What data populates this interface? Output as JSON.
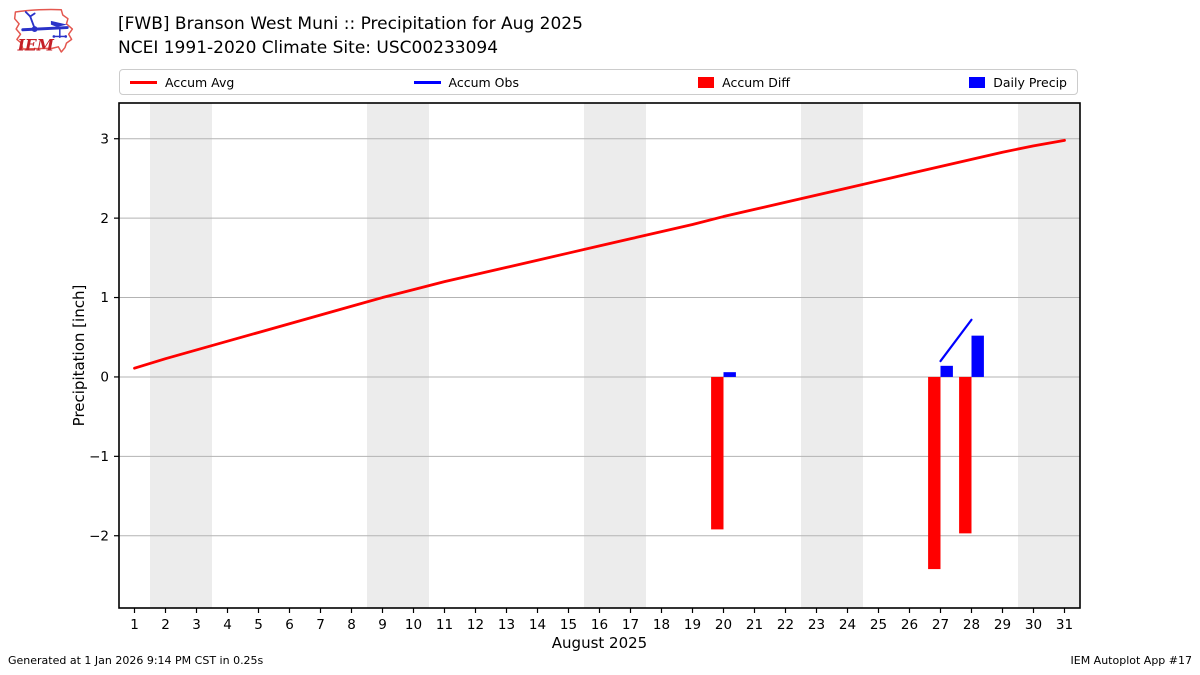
{
  "header": {
    "logo_text": "IEM",
    "title_line1": "[FWB] Branson West Muni :: Precipitation for Aug 2025",
    "title_line2": "NCEI 1991-2020 Climate Site: USC00233094"
  },
  "legend": {
    "items": [
      {
        "label": "Accum Avg",
        "type": "line",
        "color": "#ff0000"
      },
      {
        "label": "Accum Obs",
        "type": "line",
        "color": "#0000ff"
      },
      {
        "label": "Accum Diff",
        "type": "box",
        "color": "#ff0000"
      },
      {
        "label": "Daily Precip",
        "type": "box",
        "color": "#0000ff"
      }
    ]
  },
  "chart_data": {
    "type": "line+bar",
    "title": "[FWB] Branson West Muni :: Precipitation for Aug 2025 — NCEI 1991-2020 Climate Site: USC00233094",
    "xlabel": "August 2025",
    "ylabel": "Precipitation [inch]",
    "xlim": [
      0.5,
      31.5
    ],
    "ylim": [
      -2.91,
      3.45
    ],
    "x_ticks": [
      1,
      2,
      3,
      4,
      5,
      6,
      7,
      8,
      9,
      10,
      11,
      12,
      13,
      14,
      15,
      16,
      17,
      18,
      19,
      20,
      21,
      22,
      23,
      24,
      25,
      26,
      27,
      28,
      29,
      30,
      31
    ],
    "y_ticks": [
      -2,
      -1,
      0,
      1,
      2,
      3
    ],
    "grid": true,
    "grid_color": "#b3b3b3",
    "band_color": "#ececec",
    "weekend_bands": [
      [
        1.5,
        3.5
      ],
      [
        8.5,
        10.5
      ],
      [
        15.5,
        17.5
      ],
      [
        22.5,
        24.5
      ],
      [
        29.5,
        31.5
      ]
    ],
    "legend_position": "top",
    "series": [
      {
        "name": "Accum Diff",
        "type": "bar",
        "color": "#ff0000",
        "offset": -0.4,
        "width": 0.4,
        "x": [
          20,
          27,
          28
        ],
        "y": [
          -1.92,
          -2.42,
          -1.97
        ]
      },
      {
        "name": "Daily Precip",
        "type": "bar",
        "color": "#0000ff",
        "offset": 0.0,
        "width": 0.4,
        "x": [
          20,
          27,
          28
        ],
        "y": [
          0.06,
          0.14,
          0.52
        ]
      },
      {
        "name": "Accum Avg",
        "type": "line",
        "color": "#ff0000",
        "line_width": 2.8,
        "x": [
          1,
          2,
          3,
          4,
          5,
          6,
          7,
          8,
          9,
          10,
          11,
          12,
          13,
          14,
          15,
          16,
          17,
          18,
          19,
          20,
          21,
          22,
          23,
          24,
          25,
          26,
          27,
          28,
          29,
          30,
          31
        ],
        "y": [
          0.11,
          0.23,
          0.34,
          0.45,
          0.56,
          0.67,
          0.78,
          0.89,
          1.0,
          1.1,
          1.2,
          1.29,
          1.38,
          1.47,
          1.56,
          1.65,
          1.74,
          1.83,
          1.92,
          2.02,
          2.11,
          2.2,
          2.29,
          2.38,
          2.47,
          2.56,
          2.65,
          2.74,
          2.83,
          2.91,
          2.98
        ]
      },
      {
        "name": "Accum Obs",
        "type": "line",
        "color": "#0000ff",
        "line_width": 2.2,
        "x": [
          27,
          28
        ],
        "y": [
          0.2,
          0.72
        ]
      }
    ]
  },
  "footer": {
    "left": "Generated at 1 Jan 2026 9:14 PM CST in 0.25s",
    "right": "IEM Autoplot App #17"
  }
}
